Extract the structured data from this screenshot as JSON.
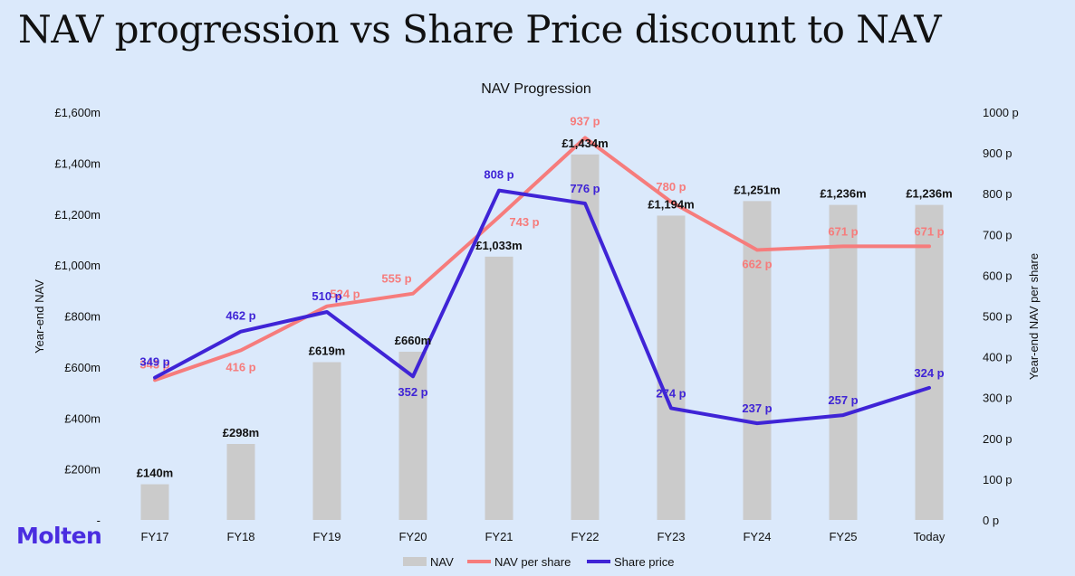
{
  "page": {
    "title": "NAV progression vs Share Price discount to NAV",
    "logo": "Molten"
  },
  "colors": {
    "background": "#dbe9fb",
    "bar": "#cbcbcb",
    "nav_per_share": "#f67c7c",
    "share_price": "#3f24d6",
    "text": "#111111",
    "logo": "#4a2de0"
  },
  "chart_data": {
    "type": "bar",
    "title": "NAV Progression",
    "categories": [
      "FY17",
      "FY18",
      "FY19",
      "FY20",
      "FY21",
      "FY22",
      "FY23",
      "FY24",
      "FY25",
      "Today"
    ],
    "y_left": {
      "label": "Year-end NAV",
      "lim": [
        0,
        1600
      ],
      "ticks": [
        0,
        200,
        400,
        600,
        800,
        1000,
        1200,
        1400,
        1600
      ],
      "tick_labels": [
        "-",
        "£200m",
        "£400m",
        "£600m",
        "£800m",
        "£1,000m",
        "£1,200m",
        "£1,400m",
        "£1,600m"
      ]
    },
    "y_right": {
      "label": "Year-end NAV per share",
      "lim": [
        0,
        1000
      ],
      "ticks": [
        0,
        100,
        200,
        300,
        400,
        500,
        600,
        700,
        800,
        900,
        1000
      ],
      "tick_labels": [
        "0 p",
        "100 p",
        "200 p",
        "300 p",
        "400 p",
        "500 p",
        "600 p",
        "700 p",
        "800 p",
        "900 p",
        "1000 p"
      ]
    },
    "series": [
      {
        "name": "NAV",
        "type": "bar",
        "axis": "left",
        "values": [
          140,
          298,
          619,
          660,
          1033,
          1434,
          1194,
          1251,
          1236,
          1236
        ],
        "labels": [
          "£140m",
          "£298m",
          "£619m",
          "£660m",
          "£1,033m",
          "£1,434m",
          "£1,194m",
          "£1,251m",
          "£1,236m",
          "£1,236m"
        ]
      },
      {
        "name": "NAV per share",
        "type": "line",
        "axis": "right",
        "values": [
          343,
          416,
          524,
          555,
          743,
          937,
          780,
          662,
          671,
          671
        ],
        "labels": [
          "343 p",
          "416 p",
          "524 p",
          "555 p",
          "743 p",
          "937 p",
          "780 p",
          "662 p",
          "671 p",
          "671 p"
        ]
      },
      {
        "name": "Share price",
        "type": "line",
        "axis": "right",
        "values": [
          349,
          462,
          510,
          352,
          808,
          776,
          274,
          237,
          257,
          324
        ],
        "labels": [
          "349 p",
          "462 p",
          "510 p",
          "352 p",
          "808 p",
          "776 p",
          "274 p",
          "237 p",
          "257 p",
          "324 p"
        ]
      }
    ],
    "legend": [
      "NAV",
      "NAV per share",
      "Share price"
    ],
    "legend_position": "bottom",
    "grid": false
  }
}
